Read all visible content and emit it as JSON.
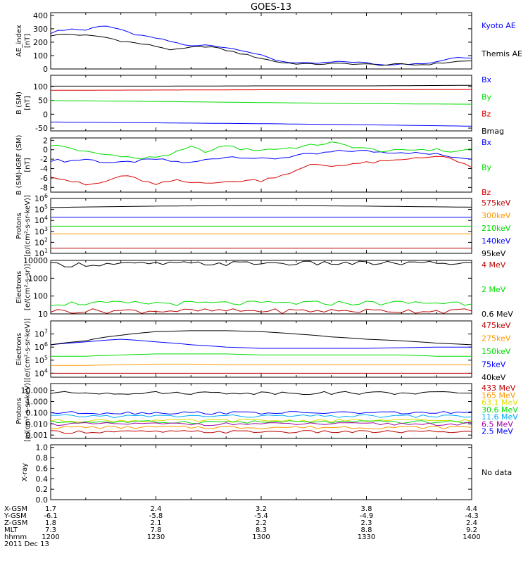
{
  "title": "GOES-13",
  "colors": {
    "black": "#000000",
    "blue": "#0000ff",
    "green": "#00dd00",
    "red": "#dd0000",
    "orange": "#ff9900",
    "darkred": "#bb0000",
    "yellow": "#dddd00",
    "cyan": "#00aaff",
    "purple": "#a000a0"
  },
  "chart_data": [
    {
      "type": "line",
      "panel": "ae",
      "ylabel": "AE_index\n[nT]",
      "ylim": [
        0,
        420
      ],
      "log": false,
      "yticks": [
        0,
        100,
        200,
        300,
        400
      ],
      "x": [
        1200,
        1205,
        1210,
        1215,
        1220,
        1225,
        1230,
        1235,
        1240,
        1245,
        1250,
        1255,
        1300,
        1305,
        1310,
        1315,
        1320,
        1325,
        1330,
        1335,
        1340,
        1345,
        1350,
        1355,
        1400
      ],
      "series": [
        {
          "name": "Kyoto AE",
          "color": "blue",
          "values": [
            270,
            300,
            290,
            330,
            290,
            250,
            230,
            200,
            170,
            180,
            160,
            140,
            100,
            60,
            45,
            40,
            50,
            55,
            45,
            30,
            40,
            35,
            50,
            90,
            85
          ]
        },
        {
          "name": "Themis AE",
          "color": "black",
          "values": [
            250,
            260,
            250,
            240,
            210,
            190,
            170,
            140,
            160,
            170,
            140,
            110,
            80,
            50,
            40,
            35,
            40,
            40,
            35,
            30,
            35,
            30,
            40,
            55,
            60
          ]
        }
      ]
    },
    {
      "type": "line",
      "panel": "bsm",
      "ylabel": "B (SM)\n[nT]",
      "ylim": [
        -60,
        140
      ],
      "log": false,
      "yticks": [
        -50,
        0,
        50,
        100
      ],
      "x": [
        1200,
        1230,
        1300,
        1330,
        1400
      ],
      "series": [
        {
          "name": "Bx",
          "color": "blue",
          "values": [
            -28,
            -31,
            -34,
            -38,
            -43
          ]
        },
        {
          "name": "By",
          "color": "green",
          "values": [
            49,
            46,
            42,
            38,
            36
          ]
        },
        {
          "name": "Bz",
          "color": "red",
          "values": [
            86,
            87,
            88,
            88,
            89
          ]
        },
        {
          "name": "Bmag",
          "color": "black",
          "values": [
            101,
            101,
            102,
            102,
            104
          ]
        }
      ]
    },
    {
      "type": "line",
      "panel": "bdiff",
      "ylabel": "B (SM)-IGRF (SM)\n[nT]",
      "ylim": [
        -9,
        2.5
      ],
      "log": false,
      "yticks": [
        -8,
        -6,
        -4,
        -2,
        0,
        2
      ],
      "x": [
        1200,
        1205,
        1210,
        1215,
        1220,
        1225,
        1230,
        1235,
        1240,
        1245,
        1250,
        1255,
        1300,
        1305,
        1310,
        1315,
        1320,
        1325,
        1330,
        1335,
        1340,
        1345,
        1350,
        1355,
        1400
      ],
      "series": [
        {
          "name": "Bx",
          "color": "blue",
          "values": [
            -2.2,
            -2.4,
            -2.0,
            -2.6,
            -2.8,
            -2.4,
            -2.0,
            -2.5,
            -2.8,
            -2.0,
            -1.5,
            -1.5,
            -2.0,
            -1.8,
            -1.2,
            -1.0,
            -0.5,
            -0.2,
            -0.3,
            -0.5,
            -0.5,
            -0.8,
            -1.0,
            -1.5,
            -1.8
          ]
        },
        {
          "name": "By",
          "color": "green",
          "values": [
            1.0,
            0.5,
            -0.5,
            -1.0,
            -1.2,
            -2.0,
            -1.5,
            -0.8,
            0.5,
            -0.5,
            1.0,
            0.0,
            0.0,
            0.2,
            0.5,
            1.0,
            1.5,
            0.8,
            0.2,
            -0.3,
            -0.2,
            0.1,
            0.0,
            -0.5,
            0.2
          ]
        },
        {
          "name": "Bz",
          "color": "red",
          "values": [
            -5.5,
            -6.5,
            -7.5,
            -7.0,
            -5.5,
            -6.2,
            -7.5,
            -6.5,
            -7.0,
            -6.8,
            -7.0,
            -6.5,
            -6.5,
            -5.5,
            -4.5,
            -3.0,
            -3.5,
            -3.0,
            -2.8,
            -2.5,
            -2.2,
            -1.5,
            -1.5,
            -2.0,
            -4.0
          ]
        }
      ]
    },
    {
      "type": "line",
      "panel": "protons",
      "ylabel": "Protons\n[p/(cm²-s-sr-keV)]",
      "ylim": [
        10,
        1000000
      ],
      "log": true,
      "yticks": [
        1,
        2,
        3,
        4,
        5,
        6
      ],
      "ytickfmt": "pow",
      "x": [
        1200,
        1230,
        1300,
        1330,
        1400
      ],
      "series": [
        {
          "name": "575keV",
          "color": "darkred",
          "values": [
            30,
            30,
            30,
            30,
            30
          ]
        },
        {
          "name": "300keV",
          "color": "orange",
          "values": [
            600,
            600,
            600,
            600,
            600
          ]
        },
        {
          "name": "210keV",
          "color": "green",
          "values": [
            3000,
            3000,
            3000,
            3000,
            3000
          ]
        },
        {
          "name": "140keV",
          "color": "blue",
          "values": [
            20000,
            20000,
            20000,
            20000,
            20000
          ]
        },
        {
          "name": "95keV",
          "color": "black",
          "values": [
            150000,
            200000,
            230000,
            200000,
            160000
          ]
        }
      ]
    },
    {
      "type": "line",
      "panel": "electrons_mev",
      "ylabel": "Electrons\n[e/(cm²-s-sr)]",
      "ylim": [
        10,
        10000
      ],
      "log": true,
      "yticks": [
        10,
        100,
        1000,
        10000
      ],
      "ytickfmt": "plain",
      "x": [
        1200,
        1230,
        1300,
        1330,
        1400
      ],
      "series": [
        {
          "name": "4 MeV",
          "color": "darkred",
          "values": [
            15,
            15,
            15,
            15,
            15
          ]
        },
        {
          "name": "2 MeV",
          "color": "green",
          "values": [
            40,
            40,
            40,
            42,
            42
          ]
        },
        {
          "name": "0.6 MeV",
          "color": "black",
          "values": [
            6000,
            6500,
            7000,
            7000,
            7000
          ]
        }
      ]
    },
    {
      "type": "line",
      "panel": "electrons_kev",
      "ylabel": "Electrons\n[e/(cm²-s-sr-keV)]",
      "ylim": [
        5000,
        100000000
      ],
      "log": true,
      "yticks": [
        4,
        5,
        6,
        7
      ],
      "ytickfmt": "pow",
      "x": [
        1200,
        1210,
        1220,
        1230,
        1240,
        1250,
        1300,
        1310,
        1320,
        1330,
        1340,
        1350,
        1400
      ],
      "series": [
        {
          "name": "475keV",
          "color": "darkred",
          "values": [
            10000,
            10000,
            10000,
            10000,
            10000,
            10000,
            10000,
            10000,
            10000,
            10000,
            10000,
            10000,
            10000
          ]
        },
        {
          "name": "275keV",
          "color": "orange",
          "values": [
            40000,
            40000,
            45000,
            50000,
            50000,
            45000,
            45000,
            45000,
            45000,
            45000,
            45000,
            45000,
            45000
          ]
        },
        {
          "name": "150keV",
          "color": "green",
          "values": [
            200000,
            200000,
            250000,
            300000,
            300000,
            300000,
            250000,
            250000,
            250000,
            250000,
            250000,
            200000,
            200000
          ]
        },
        {
          "name": "75keV",
          "color": "blue",
          "values": [
            1500000,
            2500000,
            4000000,
            2500000,
            1500000,
            1000000,
            800000,
            800000,
            800000,
            800000,
            900000,
            1000000,
            1000000
          ]
        },
        {
          "name": "40keV",
          "color": "black",
          "values": [
            1500000,
            3000000,
            8000000,
            15000000,
            18000000,
            18000000,
            15000000,
            10000000,
            6000000,
            4000000,
            3000000,
            2000000,
            1500000
          ]
        }
      ]
    },
    {
      "type": "line",
      "panel": "protons_mev",
      "ylabel": "Protons\n[p/(cm²-s-sr-keV)]",
      "ylim": [
        0.0005,
        40
      ],
      "log": true,
      "yticks": [
        0.001,
        0.01,
        0.1,
        1,
        10
      ],
      "ytickfmt": "fixed3",
      "x": [
        1200,
        1230,
        1300,
        1330,
        1400
      ],
      "series": [
        {
          "name": "433 MeV",
          "color": "darkred",
          "values": [
            0.002,
            0.002,
            0.002,
            0.002,
            0.002
          ]
        },
        {
          "name": "165 MeV",
          "color": "orange",
          "values": [
            0.005,
            0.005,
            0.005,
            0.005,
            0.005
          ]
        },
        {
          "name": "63.1 MeV",
          "color": "yellow",
          "values": [
            0.02,
            0.02,
            0.02,
            0.02,
            0.02
          ]
        },
        {
          "name": "30.6 MeV",
          "color": "green",
          "values": [
            0.015,
            0.015,
            0.015,
            0.015,
            0.015
          ]
        },
        {
          "name": "11.6 MeV",
          "color": "cyan",
          "values": [
            0.05,
            0.05,
            0.05,
            0.05,
            0.05
          ]
        },
        {
          "name": "6.5 MeV",
          "color": "purple",
          "values": [
            0.01,
            0.01,
            0.01,
            0.01,
            0.01
          ]
        },
        {
          "name": "2.5 MeV",
          "color": "blue",
          "values": [
            0.1,
            0.1,
            0.1,
            0.1,
            0.1
          ]
        },
        {
          "name": "",
          "color": "black",
          "values": [
            6,
            6,
            6,
            6,
            6
          ]
        }
      ]
    },
    {
      "type": "line",
      "panel": "xray",
      "ylabel": "X-ray",
      "ylim": [
        0,
        1.05
      ],
      "log": false,
      "yticks": [
        0,
        0.2,
        0.4,
        0.6,
        0.8,
        1.0
      ],
      "ytickfmt": "fixed1",
      "note": "No data",
      "series": []
    }
  ],
  "x_axis": {
    "rows": [
      {
        "label": "X-GSM",
        "values": [
          "1.7",
          "2.4",
          "3.2",
          "3.8",
          "4.4"
        ]
      },
      {
        "label": "Y-GSM",
        "values": [
          "-6.1",
          "-5.8",
          "-5.4",
          "-4.9",
          "-4.3"
        ]
      },
      {
        "label": "Z-GSM",
        "values": [
          "1.8",
          "2.1",
          "2.2",
          "2.3",
          "2.4"
        ]
      },
      {
        "label": "MLT",
        "values": [
          "7.3",
          "7.8",
          "8.3",
          "8.8",
          "9.2"
        ]
      },
      {
        "label": "hhmm",
        "values": [
          "1200",
          "1230",
          "1300",
          "1330",
          "1400"
        ]
      }
    ],
    "date": "2011 Dec 13"
  }
}
